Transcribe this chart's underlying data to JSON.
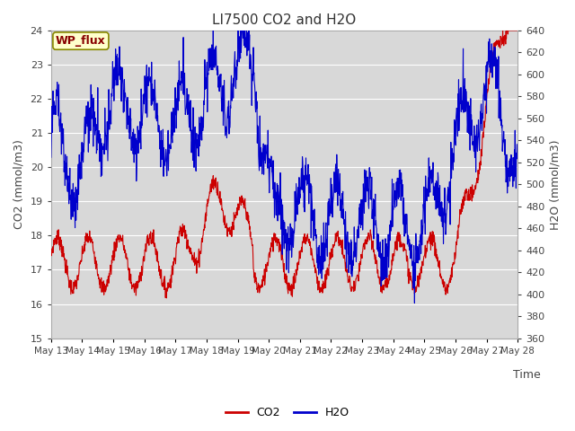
{
  "title": "LI7500 CO2 and H2O",
  "xlabel": "Time",
  "ylabel_left": "CO2 (mmol/m3)",
  "ylabel_right": "H2O (mmol/m3)",
  "ylim_left": [
    15.0,
    24.0
  ],
  "ylim_right": [
    360,
    640
  ],
  "xtick_labels": [
    "May 13",
    "May 14",
    "May 15",
    "May 16",
    "May 17",
    "May 18",
    "May 19",
    "May 20",
    "May 21",
    "May 22",
    "May 23",
    "May 24",
    "May 25",
    "May 26",
    "May 27",
    "May 28"
  ],
  "yticks_left": [
    15.0,
    16.0,
    17.0,
    18.0,
    19.0,
    20.0,
    21.0,
    22.0,
    23.0,
    24.0
  ],
  "yticks_right": [
    360,
    380,
    400,
    420,
    440,
    460,
    480,
    500,
    520,
    540,
    560,
    580,
    600,
    620,
    640
  ],
  "co2_color": "#cc0000",
  "h2o_color": "#0000cc",
  "background_color": "#ffffff",
  "plot_bg_color": "#d8d8d8",
  "grid_color": "#ffffff",
  "annotation_text": "WP_flux",
  "annotation_bg": "#ffffcc",
  "annotation_border": "#888800",
  "annotation_text_color": "#880000",
  "legend_co2": "CO2",
  "legend_h2o": "H2O",
  "title_fontsize": 11,
  "axis_fontsize": 9,
  "tick_fontsize": 8
}
